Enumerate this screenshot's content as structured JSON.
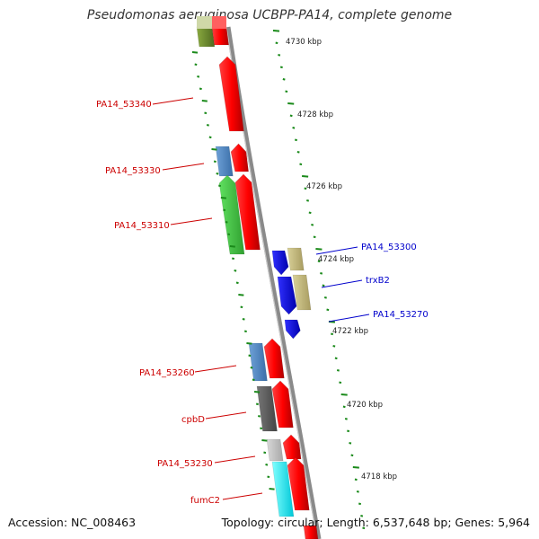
{
  "title": "Pseudomonas aeruginosa UCBPP-PA14, complete genome",
  "footer": {
    "accession": "Accession: NC_008463",
    "topology": "Topology: circular; Length: 6,537,648 bp; Genes: 5,964"
  },
  "colors": {
    "forward_strand": "#e60000",
    "reverse_strand": "#1010e0",
    "tick_green": "#1a8a1a",
    "left_label": "#cc0000",
    "right_label": "#0000cc",
    "backbone": "#888888"
  },
  "axis": {
    "unit": "kbp",
    "ticks": [
      {
        "label": "4730 kbp"
      },
      {
        "label": "4728 kbp"
      },
      {
        "label": "4726 kbp"
      },
      {
        "label": "4724 kbp"
      },
      {
        "label": "4722 kbp"
      },
      {
        "label": "4720 kbp"
      },
      {
        "label": "4718 kbp"
      }
    ]
  },
  "gene_labels_left": [
    "PA14_53340",
    "PA14_53330",
    "PA14_53310",
    "PA14_53260",
    "cpbD",
    "PA14_53230",
    "fumC2"
  ],
  "gene_labels_right": [
    "PA14_53300",
    "trxB2",
    "PA14_53270"
  ]
}
